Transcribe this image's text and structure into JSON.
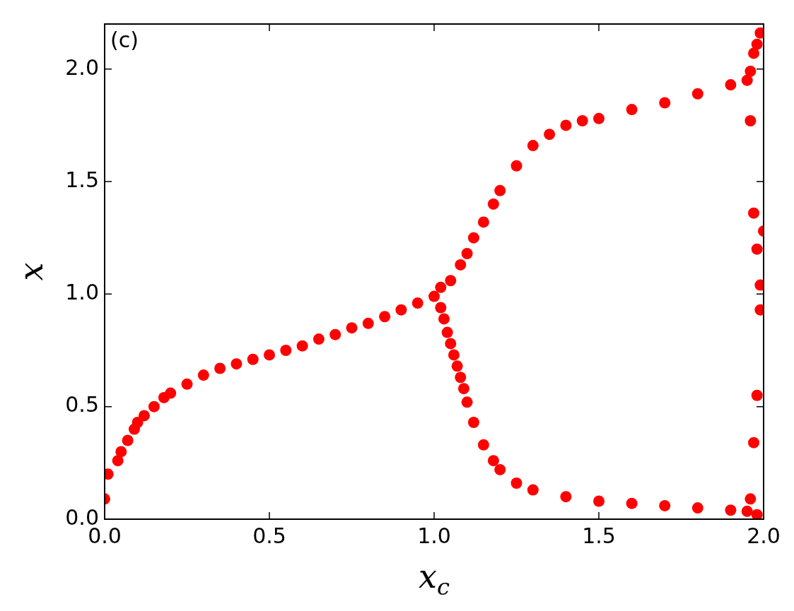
{
  "chart_data": {
    "type": "scatter",
    "xlabel": "x$_{c}$",
    "ylabel": "x",
    "annotations": [
      "(c)"
    ],
    "xlim": [
      0,
      2
    ],
    "ylim": [
      0,
      2.2
    ],
    "xticks": [
      {
        "value": 0,
        "label": "0.0"
      },
      0.5,
      {
        "value": 1,
        "label": "1.0"
      },
      1.5,
      {
        "value": 2,
        "label": "2.0"
      }
    ],
    "yticks": [
      {
        "value": 0,
        "label": "0.0"
      },
      0.5,
      {
        "value": 1,
        "label": "1.0"
      },
      1.5,
      {
        "value": 2,
        "label": "2.0"
      }
    ],
    "grid": false,
    "legend": false,
    "marker": "circle",
    "series": [
      {
        "color": "#ff0000",
        "x": [
          0,
          0.01,
          0.04,
          0.05,
          0.07,
          0.09,
          0.1,
          0.12,
          0.15,
          0.18,
          0.2,
          0.25,
          0.3,
          0.35,
          0.4,
          0.45,
          0.5,
          0.55,
          0.6,
          0.65,
          0.7,
          0.75,
          0.8,
          0.85,
          0.9,
          0.95,
          1.0,
          1.02,
          1.05,
          1.08,
          1.1,
          1.12,
          1.15,
          1.18,
          1.2,
          1.25,
          1.3,
          1.35,
          1.4,
          1.45,
          1.5,
          1.6,
          1.7,
          1.8,
          1.9,
          1.95,
          1.02,
          1.03,
          1.04,
          1.05,
          1.06,
          1.07,
          1.08,
          1.09,
          1.1,
          1.12,
          1.15,
          1.18,
          1.2,
          1.25,
          1.3,
          1.4,
          1.5,
          1.6,
          1.7,
          1.8,
          1.9,
          1.95,
          1.98,
          1.96,
          1.96,
          1.97,
          1.98,
          1.99,
          1.97,
          2.0,
          1.98,
          1.99,
          1.99,
          1.98,
          1.97,
          1.96
        ],
        "values": [
          0.09,
          0.2,
          0.26,
          0.3,
          0.35,
          0.4,
          0.43,
          0.46,
          0.5,
          0.54,
          0.56,
          0.6,
          0.64,
          0.67,
          0.69,
          0.71,
          0.73,
          0.75,
          0.77,
          0.8,
          0.82,
          0.85,
          0.87,
          0.9,
          0.93,
          0.96,
          0.99,
          1.03,
          1.06,
          1.13,
          1.18,
          1.25,
          1.32,
          1.4,
          1.46,
          1.57,
          1.66,
          1.71,
          1.75,
          1.77,
          1.78,
          1.82,
          1.85,
          1.89,
          1.93,
          1.95,
          0.94,
          0.89,
          0.83,
          0.78,
          0.73,
          0.68,
          0.63,
          0.58,
          0.52,
          0.43,
          0.33,
          0.26,
          0.22,
          0.16,
          0.13,
          0.1,
          0.08,
          0.07,
          0.06,
          0.05,
          0.04,
          0.035,
          0.02,
          1.99,
          1.77,
          2.07,
          2.11,
          2.16,
          1.36,
          1.28,
          1.2,
          1.04,
          0.93,
          0.55,
          0.34,
          0.09
        ]
      }
    ]
  }
}
